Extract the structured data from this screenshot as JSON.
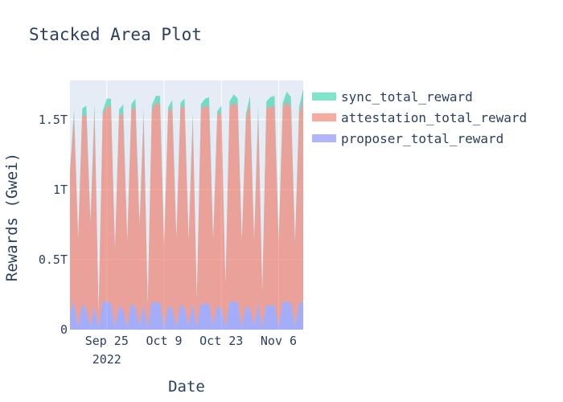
{
  "chart_data": {
    "type": "area",
    "stacked": true,
    "title": "Stacked Area Plot",
    "xlabel": "Date",
    "ylabel": "Rewards (Gwei)",
    "x_range": [
      "2022-09-16",
      "2022-11-12"
    ],
    "ylim": [
      0,
      1.78
    ],
    "y_unit": "T",
    "y_ticks": [
      {
        "value": 0,
        "label": "0"
      },
      {
        "value": 0.5,
        "label": "0.5T"
      },
      {
        "value": 1.0,
        "label": "1T"
      },
      {
        "value": 1.5,
        "label": "1.5T"
      }
    ],
    "x_ticks": [
      {
        "date": "2022-09-25",
        "label": "Sep 25",
        "sublabel": "2022"
      },
      {
        "date": "2022-10-09",
        "label": "Oct 9",
        "sublabel": ""
      },
      {
        "date": "2022-10-23",
        "label": "Oct 23",
        "sublabel": ""
      },
      {
        "date": "2022-11-06",
        "label": "Nov 6",
        "sublabel": ""
      }
    ],
    "x": [
      "2022-09-16",
      "2022-09-17",
      "2022-09-18",
      "2022-09-19",
      "2022-09-20",
      "2022-09-21",
      "2022-09-22",
      "2022-09-23",
      "2022-09-24",
      "2022-09-25",
      "2022-09-26",
      "2022-09-27",
      "2022-09-28",
      "2022-09-29",
      "2022-09-30",
      "2022-10-01",
      "2022-10-02",
      "2022-10-03",
      "2022-10-04",
      "2022-10-05",
      "2022-10-06",
      "2022-10-07",
      "2022-10-08",
      "2022-10-09",
      "2022-10-10",
      "2022-10-11",
      "2022-10-12",
      "2022-10-13",
      "2022-10-14",
      "2022-10-15",
      "2022-10-16",
      "2022-10-17",
      "2022-10-18",
      "2022-10-19",
      "2022-10-20",
      "2022-10-21",
      "2022-10-22",
      "2022-10-23",
      "2022-10-24",
      "2022-10-25",
      "2022-10-26",
      "2022-10-27",
      "2022-10-28",
      "2022-10-29",
      "2022-10-30",
      "2022-10-31",
      "2022-11-01",
      "2022-11-02",
      "2022-11-03",
      "2022-11-04",
      "2022-11-05",
      "2022-11-06",
      "2022-11-07",
      "2022-11-08",
      "2022-11-09",
      "2022-11-10",
      "2022-11-11",
      "2022-11-12"
    ],
    "series": [
      {
        "name": "proposer_total_reward",
        "color": "#636efa",
        "values": [
          0.12,
          0.2,
          0.02,
          0.18,
          0.15,
          0.03,
          0.17,
          0.02,
          0.2,
          0.2,
          0.19,
          0.02,
          0.17,
          0.14,
          0.02,
          0.19,
          0.16,
          0.03,
          0.18,
          0.02,
          0.2,
          0.19,
          0.2,
          0.02,
          0.17,
          0.15,
          0.02,
          0.18,
          0.16,
          0.03,
          0.19,
          0.02,
          0.19,
          0.18,
          0.19,
          0.03,
          0.17,
          0.15,
          0.02,
          0.2,
          0.2,
          0.2,
          0.02,
          0.17,
          0.15,
          0.03,
          0.19,
          0.02,
          0.18,
          0.17,
          0.18,
          0.02,
          0.2,
          0.2,
          0.19,
          0.03,
          0.19,
          0.2
        ]
      },
      {
        "name": "attestation_total_reward",
        "color": "#ef553b",
        "values": [
          1.0,
          1.33,
          0.62,
          1.35,
          1.38,
          0.72,
          1.4,
          0.1,
          1.33,
          1.39,
          1.41,
          0.55,
          1.36,
          1.4,
          0.6,
          1.38,
          1.43,
          0.7,
          1.35,
          0.15,
          1.36,
          1.43,
          1.41,
          0.58,
          1.39,
          1.43,
          0.62,
          1.4,
          1.44,
          0.6,
          1.33,
          0.2,
          1.38,
          1.42,
          1.4,
          0.6,
          1.36,
          1.4,
          0.3,
          1.39,
          1.42,
          1.4,
          0.6,
          1.34,
          1.46,
          0.6,
          1.36,
          0.25,
          1.4,
          1.42,
          1.42,
          0.6,
          1.38,
          1.43,
          1.4,
          0.58,
          1.35,
          1.44
        ]
      },
      {
        "name": "sync_total_reward",
        "color": "#00cc96",
        "values": [
          0.02,
          0.04,
          0.02,
          0.05,
          0.07,
          0.03,
          0.04,
          0.01,
          0.03,
          0.06,
          0.05,
          0.02,
          0.04,
          0.07,
          0.02,
          0.04,
          0.06,
          0.03,
          0.04,
          0.01,
          0.04,
          0.05,
          0.06,
          0.02,
          0.03,
          0.06,
          0.02,
          0.04,
          0.05,
          0.02,
          0.03,
          0.01,
          0.04,
          0.05,
          0.07,
          0.02,
          0.03,
          0.05,
          0.01,
          0.04,
          0.06,
          0.05,
          0.02,
          0.03,
          0.06,
          0.02,
          0.05,
          0.01,
          0.05,
          0.07,
          0.07,
          0.02,
          0.04,
          0.07,
          0.07,
          0.02,
          0.05,
          0.08
        ]
      }
    ],
    "legend_order": [
      "sync_total_reward",
      "attestation_total_reward",
      "proposer_total_reward"
    ],
    "legend_position": "right",
    "grid": true,
    "plot_background": "#e5ecf6"
  }
}
